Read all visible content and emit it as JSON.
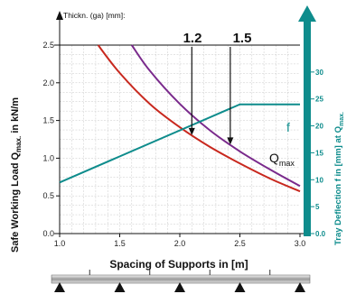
{
  "chart_data": {
    "type": "line",
    "top_label": "Thickn. (ga) [mm]:",
    "xlabel": "Spacing of Supports in [m]",
    "ylabel": "Safe Working Load Q",
    "ylabel_sub": "max.",
    "ylabel_unit": " in kN/m",
    "y2label": "Tray Deflection f in [mm] at Q",
    "y2label_sub": "max.",
    "xlim": [
      1.0,
      3.0
    ],
    "ylim": [
      0.0,
      2.5
    ],
    "y2lim": [
      0,
      35
    ],
    "x_ticks": [
      1.0,
      1.5,
      2.0,
      2.5,
      3.0
    ],
    "x_tick_labels": [
      "1.0",
      "1.5",
      "2.0",
      "2.5",
      "3.0"
    ],
    "y_ticks": [
      0.0,
      0.5,
      1.0,
      1.5,
      2.0,
      2.5
    ],
    "y_tick_labels": [
      "0.0",
      "0.5",
      "1.0",
      "1.5",
      "2.0",
      "2.5"
    ],
    "y2_ticks": [
      0,
      5,
      10,
      15,
      20,
      25,
      30
    ],
    "y2_tick_labels": [
      "0.0",
      "5",
      "10",
      "15",
      "20",
      "25",
      "30"
    ],
    "grid": true,
    "series": [
      {
        "name": "1.2",
        "color": "#c8281e",
        "axis": "left",
        "x": [
          1.32,
          1.5,
          1.75,
          2.0,
          2.25,
          2.5,
          2.75,
          3.0
        ],
        "y": [
          2.5,
          2.13,
          1.72,
          1.41,
          1.15,
          0.93,
          0.73,
          0.56
        ]
      },
      {
        "name": "1.5",
        "color": "#7a2a8c",
        "axis": "left",
        "x": [
          1.6,
          1.75,
          2.0,
          2.25,
          2.5,
          2.75,
          3.0
        ],
        "y": [
          2.5,
          2.16,
          1.72,
          1.37,
          1.09,
          0.85,
          0.63
        ]
      },
      {
        "name": "f",
        "color": "#0e8c8c",
        "axis": "right",
        "x": [
          1.0,
          2.5,
          3.0
        ],
        "y": [
          9.5,
          24.0,
          24.0
        ]
      }
    ],
    "annotations": {
      "qmax_text": "Q",
      "qmax_sub": "max",
      "f_text": "f",
      "mark_12": "1.2",
      "mark_15": "1.5"
    },
    "markers": [
      {
        "label": "1.2",
        "x": 2.1,
        "color": "#c8281e"
      },
      {
        "label": "1.5",
        "x": 2.42,
        "color": "#7a2a8c"
      }
    ],
    "colors": {
      "grid": "#c8c8c8",
      "axis_right": "#0e8c8c",
      "text": "#111111"
    }
  }
}
